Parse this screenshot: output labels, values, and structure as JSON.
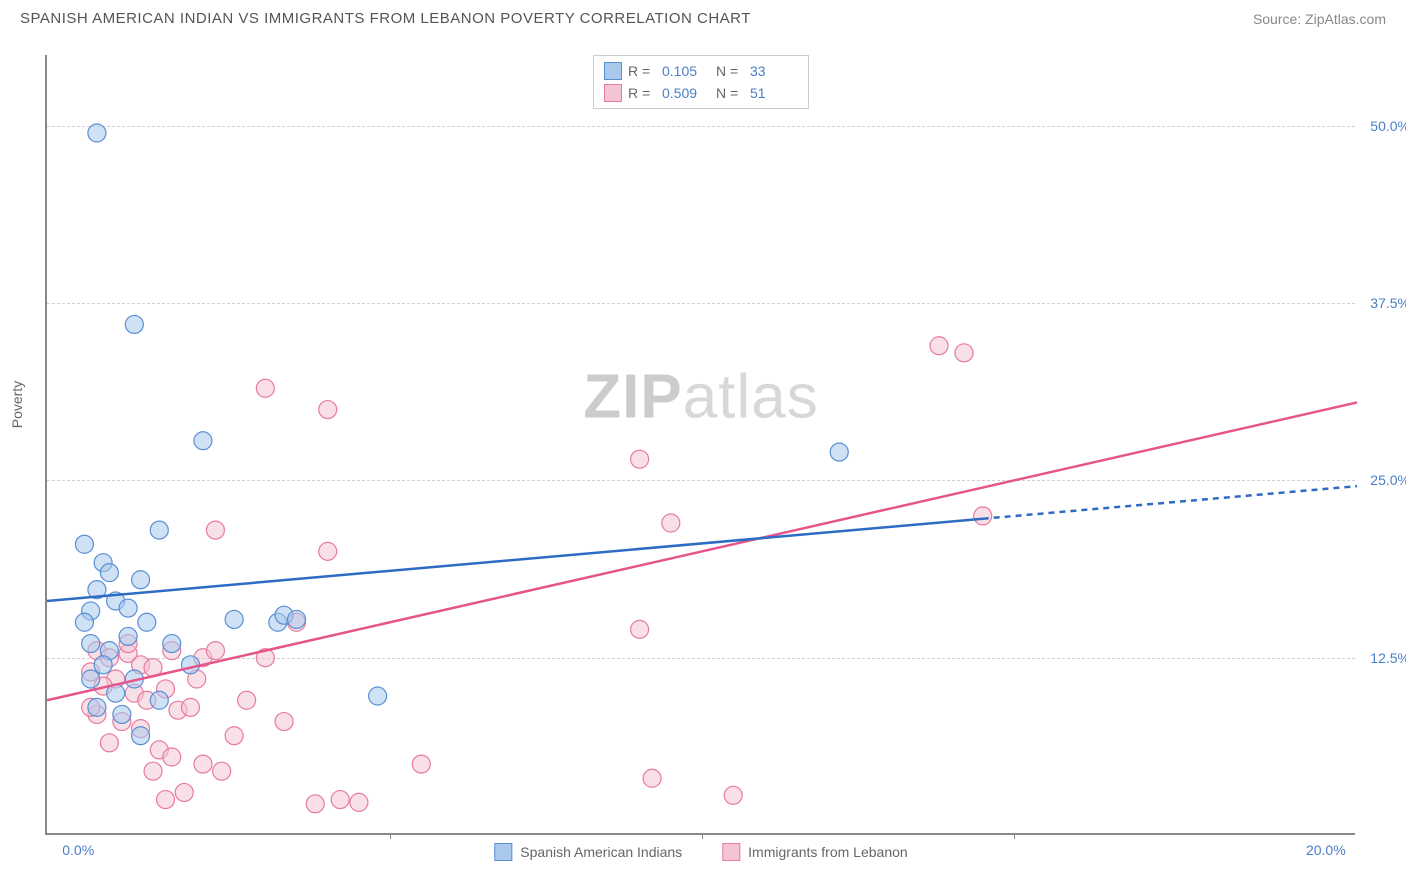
{
  "header": {
    "title": "SPANISH AMERICAN INDIAN VS IMMIGRANTS FROM LEBANON POVERTY CORRELATION CHART",
    "source": "Source: ZipAtlas.com"
  },
  "watermark": {
    "z": "ZIP",
    "rest": "atlas"
  },
  "y_axis": {
    "title": "Poverty",
    "ticks": [
      {
        "value": 50.0,
        "label": "50.0%"
      },
      {
        "value": 37.5,
        "label": "37.5%"
      },
      {
        "value": 25.0,
        "label": "25.0%"
      },
      {
        "value": 12.5,
        "label": "12.5%"
      }
    ],
    "min": 0,
    "max": 55
  },
  "x_axis": {
    "ticks": [
      {
        "value": 0.0,
        "label": "0.0%"
      },
      {
        "value": 20.0,
        "label": "20.0%"
      }
    ],
    "marks": [
      5,
      10,
      15
    ],
    "min": -0.5,
    "max": 20.5
  },
  "legend_top": {
    "rows": [
      {
        "swatch": "blue",
        "r_label": "R =",
        "r_val": "0.105",
        "n_label": "N =",
        "n_val": "33"
      },
      {
        "swatch": "pink",
        "r_label": "R =",
        "r_val": "0.509",
        "n_label": "N =",
        "n_val": "51"
      }
    ]
  },
  "legend_bottom": {
    "items": [
      {
        "swatch": "blue",
        "label": "Spanish American Indians"
      },
      {
        "swatch": "pink",
        "label": "Immigrants from Lebanon"
      }
    ]
  },
  "colors": {
    "blue_fill": "#a8c8ec",
    "blue_stroke": "#5a8fd4",
    "blue_line": "#2e6bc4",
    "pink_fill": "#f4c4d2",
    "pink_stroke": "#e77ba0",
    "pink_line": "#e5548b",
    "axis": "#888888",
    "grid": "#d0d0d0",
    "tick_text": "#4a7fc8"
  },
  "marker_radius": 9,
  "marker_opacity": 0.55,
  "series": {
    "blue": {
      "points": [
        [
          0.3,
          49.5
        ],
        [
          0.9,
          36.0
        ],
        [
          2.0,
          27.8
        ],
        [
          0.1,
          20.5
        ],
        [
          0.4,
          19.2
        ],
        [
          1.3,
          21.5
        ],
        [
          0.3,
          17.3
        ],
        [
          0.5,
          18.5
        ],
        [
          1.0,
          18.0
        ],
        [
          0.2,
          15.8
        ],
        [
          0.6,
          16.5
        ],
        [
          1.1,
          15.0
        ],
        [
          0.8,
          14.0
        ],
        [
          0.2,
          13.5
        ],
        [
          0.5,
          13.0
        ],
        [
          1.5,
          13.5
        ],
        [
          1.8,
          12.0
        ],
        [
          0.9,
          11.0
        ],
        [
          1.3,
          9.5
        ],
        [
          0.3,
          9.0
        ],
        [
          0.7,
          8.5
        ],
        [
          1.0,
          7.0
        ],
        [
          2.5,
          15.2
        ],
        [
          3.2,
          15.0
        ],
        [
          3.3,
          15.5
        ],
        [
          3.5,
          15.2
        ],
        [
          4.8,
          9.8
        ],
        [
          12.2,
          27.0
        ],
        [
          0.1,
          15.0
        ],
        [
          0.4,
          12.0
        ],
        [
          0.2,
          11.0
        ],
        [
          0.6,
          10.0
        ],
        [
          0.8,
          16.0
        ]
      ],
      "trend": {
        "solid": [
          [
            -0.5,
            16.5
          ],
          [
            14.5,
            22.3
          ]
        ],
        "dashed": [
          [
            14.5,
            22.3
          ],
          [
            20.5,
            24.6
          ]
        ]
      }
    },
    "pink": {
      "points": [
        [
          0.3,
          13.0
        ],
        [
          0.5,
          12.5
        ],
        [
          0.8,
          12.8
        ],
        [
          1.0,
          12.0
        ],
        [
          0.2,
          11.5
        ],
        [
          0.6,
          11.0
        ],
        [
          1.2,
          11.8
        ],
        [
          1.5,
          13.0
        ],
        [
          0.4,
          10.5
        ],
        [
          0.9,
          10.0
        ],
        [
          1.1,
          9.5
        ],
        [
          1.4,
          10.3
        ],
        [
          0.3,
          8.5
        ],
        [
          0.7,
          8.0
        ],
        [
          1.0,
          7.5
        ],
        [
          1.6,
          8.8
        ],
        [
          1.8,
          9.0
        ],
        [
          2.0,
          12.5
        ],
        [
          2.2,
          13.0
        ],
        [
          0.5,
          6.5
        ],
        [
          1.3,
          6.0
        ],
        [
          1.5,
          5.5
        ],
        [
          1.2,
          4.5
        ],
        [
          2.0,
          5.0
        ],
        [
          2.3,
          4.5
        ],
        [
          2.5,
          7.0
        ],
        [
          1.7,
          3.0
        ],
        [
          1.4,
          2.5
        ],
        [
          3.0,
          31.5
        ],
        [
          4.0,
          30.0
        ],
        [
          2.2,
          21.5
        ],
        [
          4.0,
          20.0
        ],
        [
          3.3,
          8.0
        ],
        [
          3.5,
          15.0
        ],
        [
          4.2,
          2.5
        ],
        [
          4.5,
          2.3
        ],
        [
          5.5,
          5.0
        ],
        [
          3.0,
          12.5
        ],
        [
          9.0,
          26.5
        ],
        [
          9.0,
          14.5
        ],
        [
          9.5,
          22.0
        ],
        [
          9.2,
          4.0
        ],
        [
          10.5,
          2.8
        ],
        [
          13.8,
          34.5
        ],
        [
          14.2,
          34.0
        ],
        [
          14.5,
          22.5
        ],
        [
          0.2,
          9.0
        ],
        [
          0.8,
          13.5
        ],
        [
          1.9,
          11.0
        ],
        [
          2.7,
          9.5
        ],
        [
          3.8,
          2.2
        ]
      ],
      "trend": {
        "solid": [
          [
            -0.5,
            9.5
          ],
          [
            20.5,
            30.5
          ]
        ]
      }
    }
  }
}
